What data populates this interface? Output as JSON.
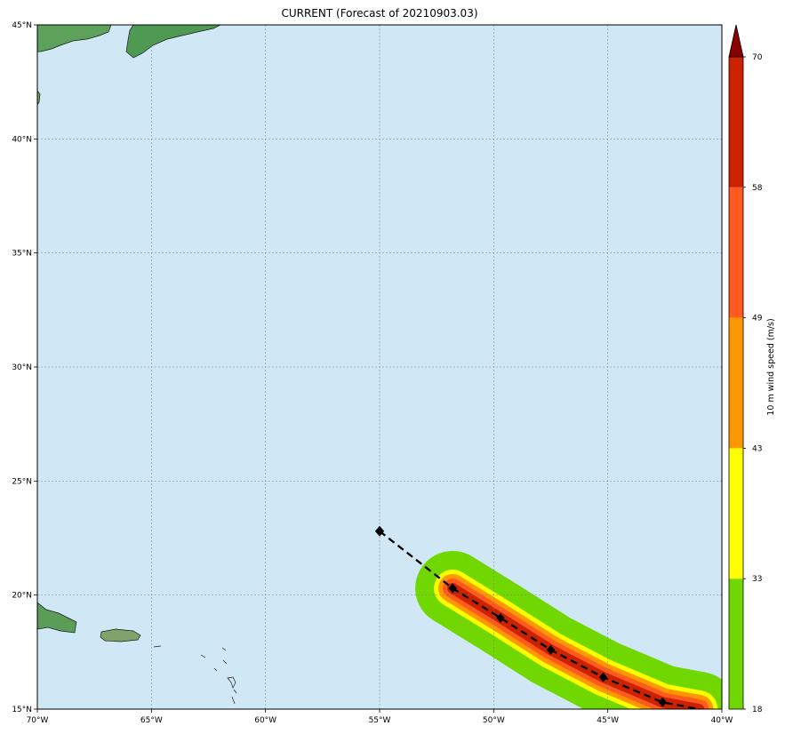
{
  "title": "CURRENT (Forecast of 20210903.03)",
  "colors": {
    "ocean": "#d0e7f5",
    "grid": "#6b7f8c",
    "track_line": "#000000"
  },
  "chart_data": {
    "type": "scatter",
    "title": "CURRENT (Forecast of 20210903.03)",
    "xlim": [
      -70,
      -40
    ],
    "ylim": [
      15,
      45
    ],
    "x_ticks": [
      -70,
      -65,
      -60,
      -55,
      -50,
      -45,
      -40
    ],
    "x_tick_labels": [
      "70°W",
      "65°W",
      "60°W",
      "55°W",
      "50°W",
      "45°W",
      "40°W"
    ],
    "y_ticks": [
      15,
      20,
      25,
      30,
      35,
      40,
      45
    ],
    "y_tick_labels": [
      "15°N",
      "20°N",
      "25°N",
      "30°N",
      "35°N",
      "40°N",
      "45°N"
    ],
    "grid": true,
    "series": [
      {
        "lon": [
          -55.0,
          -51.8,
          -49.7,
          -47.5,
          -45.2,
          -42.6,
          -41.0
        ],
        "lat": [
          22.8,
          20.3,
          19.0,
          17.6,
          16.4,
          15.3,
          15.0
        ]
      }
    ],
    "wind_swath": [
      {
        "min": 18,
        "color": "#71d700"
      },
      {
        "min": 33,
        "color": "#ffff00"
      },
      {
        "min": 43,
        "color": "#ff9700"
      },
      {
        "min": 49,
        "color": "#ff5a1f"
      },
      {
        "min": 58,
        "color": "#cc2200"
      }
    ],
    "colorbar": {
      "label": "10 m wind speed (m/s)",
      "levels": [
        18,
        33,
        43,
        49,
        58,
        70
      ],
      "level_labels": [
        "18",
        "33",
        "43",
        "49",
        "58",
        "70"
      ],
      "colors": [
        "#71d700",
        "#ffff00",
        "#ff9700",
        "#ff5a1f",
        "#cc2200"
      ],
      "extend_color": "#8b0000",
      "extend": "max"
    }
  }
}
